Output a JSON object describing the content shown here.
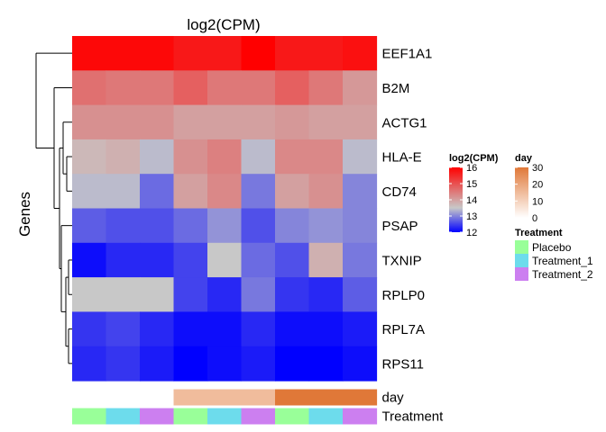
{
  "chart_data": {
    "type": "heatmap",
    "title": "log2(CPM)",
    "ylabel": "Genes",
    "rows": [
      "EEF1A1",
      "B2M",
      "ACTG1",
      "HLA-E",
      "CD74",
      "PSAP",
      "TXNIP",
      "RPLP0",
      "RPL7A",
      "RPS11"
    ],
    "values": [
      [
        15.9,
        15.9,
        15.9,
        15.7,
        15.7,
        16.0,
        15.7,
        15.7,
        15.8
      ],
      [
        14.6,
        14.5,
        14.5,
        14.8,
        14.5,
        14.5,
        14.8,
        14.5,
        14.1
      ],
      [
        14.2,
        14.2,
        14.2,
        14.0,
        14.0,
        14.0,
        14.1,
        14.0,
        14.0
      ],
      [
        13.7,
        13.8,
        13.4,
        14.2,
        14.4,
        13.4,
        14.3,
        14.3,
        13.4
      ],
      [
        13.4,
        13.4,
        12.8,
        14.0,
        14.3,
        12.9,
        14.0,
        14.2,
        13.0
      ],
      [
        12.7,
        12.6,
        12.6,
        12.8,
        13.1,
        12.6,
        13.0,
        13.1,
        13.0
      ],
      [
        12.1,
        12.3,
        12.3,
        12.5,
        13.5,
        12.8,
        12.6,
        13.8,
        12.9
      ],
      [
        13.5,
        13.5,
        13.5,
        12.5,
        12.3,
        12.9,
        12.4,
        12.3,
        12.7
      ],
      [
        12.4,
        12.5,
        12.3,
        12.1,
        12.1,
        12.3,
        12.1,
        12.1,
        12.2
      ],
      [
        12.3,
        12.4,
        12.2,
        12.0,
        12.1,
        12.2,
        12.0,
        11.9,
        12.1
      ]
    ],
    "annotations": {
      "day": [
        0,
        0,
        0,
        15,
        15,
        15,
        30,
        30,
        30
      ],
      "Treatment": [
        "Placebo",
        "Treatment_1",
        "Treatment_2",
        "Placebo",
        "Treatment_1",
        "Treatment_2",
        "Placebo",
        "Treatment_1",
        "Treatment_2"
      ]
    },
    "annotation_labels": [
      "day",
      "Treatment"
    ],
    "color_scale": {
      "title": "log2(CPM)",
      "min": 12,
      "mid": 13.5,
      "max": 16,
      "min_color": "#0000ff",
      "mid_color": "#c8c8c8",
      "max_color": "#ff0000",
      "ticks": [
        16,
        15,
        14,
        13,
        12
      ]
    },
    "day_scale": {
      "title": "day",
      "min": 0,
      "max": 30,
      "min_color": "#ffffff",
      "max_color": "#e07838",
      "ticks": [
        30,
        20,
        10,
        0
      ]
    },
    "treatment_legend": {
      "title": "Treatment",
      "items": [
        {
          "label": "Placebo",
          "color": "#99ff99"
        },
        {
          "label": "Treatment_1",
          "color": "#6ddcec"
        },
        {
          "label": "Treatment_2",
          "color": "#cc7ff0"
        }
      ]
    },
    "dendrogram": "rows"
  }
}
